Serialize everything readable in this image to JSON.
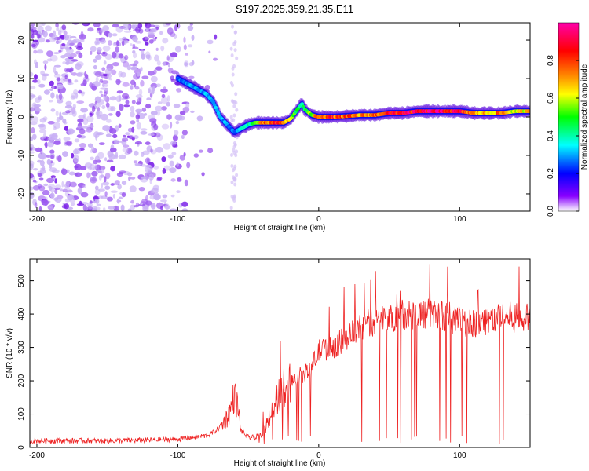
{
  "title": "S197.2025.359.21.35.E11",
  "chart_data": [
    {
      "type": "heatmap",
      "xlabel": "Height of straight line (km)",
      "ylabel": "Frequency (Hz)",
      "xlim": [
        -205,
        150
      ],
      "ylim": [
        -24.5,
        24.5
      ],
      "xticks": [
        -200,
        -100,
        0,
        100
      ],
      "yticks": [
        -20,
        -10,
        0,
        10,
        20
      ],
      "colorbar": {
        "label": "Normalized spectral amplitude",
        "range": [
          0.0,
          1.0
        ],
        "ticks": [
          0.0,
          0.2,
          0.4,
          0.6,
          0.8
        ],
        "tick_labels": [
          "0.0",
          "0.2",
          "0.4",
          "0.6",
          "0.8"
        ],
        "colors": [
          "#ffffff",
          "#8800ff",
          "#0000ff",
          "#00ffff",
          "#00ff00",
          "#ffff00",
          "#ff8800",
          "#ff0000",
          "#ff00aa"
        ]
      },
      "ridge": {
        "x": [
          -100,
          -90,
          -80,
          -75,
          -70,
          -65,
          -60,
          -55,
          -50,
          -45,
          -40,
          -35,
          -30,
          -25,
          -20,
          -15,
          -12,
          -10,
          -5,
          0,
          10,
          20,
          30,
          40,
          50,
          60,
          70,
          80,
          90,
          100,
          110,
          120,
          130,
          140,
          150
        ],
        "y": [
          10,
          8,
          6,
          4,
          0,
          -2,
          -4,
          -3,
          -2,
          -1.5,
          -1.5,
          -1.5,
          -1.5,
          -1.5,
          -0.5,
          2,
          3.5,
          2,
          0.5,
          0,
          0,
          0.2,
          0.5,
          0.5,
          1,
          1,
          1.5,
          1.5,
          1.5,
          1.5,
          1,
          1,
          1,
          1.5,
          1.5
        ],
        "amplitude": [
          0.25,
          0.3,
          0.3,
          0.3,
          0.3,
          0.3,
          0.25,
          0.35,
          0.4,
          0.5,
          0.7,
          0.75,
          0.8,
          0.75,
          0.6,
          0.45,
          0.4,
          0.45,
          0.55,
          0.8,
          0.8,
          0.75,
          0.7,
          0.75,
          0.85,
          0.9,
          0.85,
          0.95,
          0.9,
          0.85,
          0.7,
          0.65,
          0.75,
          0.6,
          0.65
        ]
      },
      "noise_region_x": [
        -205,
        -70
      ]
    },
    {
      "type": "line",
      "xlabel": "Height of straight line (km)",
      "ylabel": "SNR (10 * v/v)",
      "xlim": [
        -205,
        150
      ],
      "ylim": [
        0,
        565
      ],
      "xticks": [
        -200,
        -100,
        0,
        100
      ],
      "yticks": [
        0,
        100,
        200,
        300,
        400,
        500
      ],
      "color": "#ee2222",
      "series": {
        "name": "SNR",
        "x": [
          -205,
          -180,
          -150,
          -120,
          -100,
          -90,
          -80,
          -75,
          -70,
          -65,
          -62,
          -60,
          -58,
          -55,
          -50,
          -45,
          -40,
          -35,
          -30,
          -25,
          -20,
          -15,
          -10,
          -5,
          0,
          10,
          20,
          30,
          40,
          50,
          60,
          70,
          80,
          90,
          100,
          110,
          120,
          130,
          140,
          150
        ],
        "y": [
          20,
          20,
          20,
          22,
          25,
          30,
          35,
          45,
          60,
          90,
          120,
          160,
          130,
          50,
          30,
          30,
          40,
          90,
          140,
          180,
          200,
          215,
          220,
          240,
          290,
          300,
          330,
          360,
          380,
          390,
          400,
          400,
          400,
          395,
          380,
          370,
          385,
          390,
          390,
          385
        ]
      }
    }
  ]
}
